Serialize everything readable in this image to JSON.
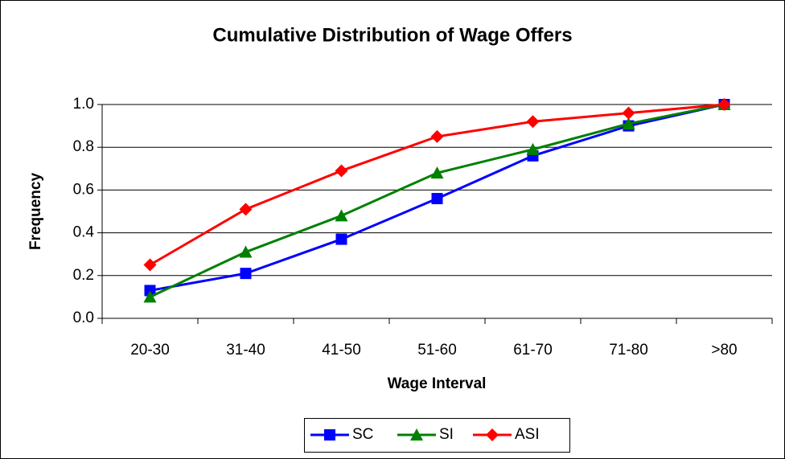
{
  "chart_data": {
    "type": "line",
    "title": "Cumulative Distribution of Wage Offers",
    "x_label": "Wage Interval",
    "y_label": "Frequency",
    "categories": [
      "20-30",
      "31-40",
      "41-50",
      "51-60",
      "61-70",
      "71-80",
      ">80"
    ],
    "series": [
      {
        "name": "SC",
        "color": "#0000ff",
        "marker": "square",
        "values": [
          0.13,
          0.21,
          0.37,
          0.56,
          0.76,
          0.9,
          1.0
        ]
      },
      {
        "name": "SI",
        "color": "#008000",
        "marker": "triangle",
        "values": [
          0.1,
          0.31,
          0.48,
          0.68,
          0.79,
          0.91,
          1.0
        ]
      },
      {
        "name": "ASI",
        "color": "#ff0000",
        "marker": "diamond",
        "values": [
          0.25,
          0.51,
          0.69,
          0.85,
          0.92,
          0.96,
          1.0
        ]
      }
    ],
    "ylim": [
      0,
      1
    ],
    "yticks": [
      {
        "value": 0,
        "label": "0.0"
      },
      0.2,
      0.4,
      0.6,
      0.8,
      {
        "value": 1,
        "label": "1.0"
      }
    ],
    "grid": true,
    "legend": "bottom"
  }
}
